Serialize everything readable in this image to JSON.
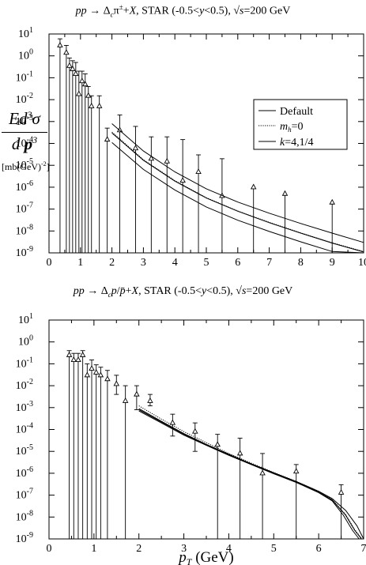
{
  "titles": {
    "top": "pp → Δcπ±+X, STAR (-0.5<y<0.5), √s=200 GeV",
    "bottom": "pp → Δcp/p̄+X, STAR (-0.5<y<0.5), √s=200 GeV"
  },
  "y_axis_label": {
    "numerator": "Ed³σ",
    "denominator": "dp³",
    "unit": "[mb(GeV)⁻²]"
  },
  "x_axis_label": "pT (GeV)",
  "legend": {
    "entries": [
      "Default",
      "mh=0",
      "k=4,1/4"
    ],
    "placement": "top-right"
  },
  "chart_data": [
    {
      "type": "scatter",
      "title": "pp → Δcπ±+X, STAR (-0.5<y<0.5), √s=200 GeV",
      "xlabel": "",
      "ylabel": "Ed³σ/dp³ [mb(GeV)⁻²]",
      "xlim": [
        0,
        10
      ],
      "ylim": [
        1e-09,
        10
      ],
      "yscale": "log",
      "xticks": [
        0,
        1,
        2,
        3,
        4,
        5,
        6,
        7,
        8,
        9,
        10
      ],
      "yticks": [
        "10^-9",
        "10^-8",
        "10^-7",
        "10^-6",
        "10^-5",
        "10^-4",
        "10^-3",
        "10^-2",
        "10^-1",
        "10^0",
        "10^1"
      ],
      "series": [
        {
          "name": "data",
          "points": [
            [
              0.35,
              3.0,
              6.0,
              1e-09
            ],
            [
              0.55,
              1.4,
              3.0,
              1e-09
            ],
            [
              0.65,
              0.35,
              0.8,
              1e-09
            ],
            [
              0.75,
              0.25,
              0.6,
              1e-09
            ],
            [
              0.85,
              0.15,
              0.5,
              1e-09
            ],
            [
              0.95,
              0.018,
              0.2,
              1e-09
            ],
            [
              1.05,
              0.07,
              0.2,
              1e-09
            ],
            [
              1.15,
              0.05,
              0.15,
              1e-09
            ],
            [
              1.25,
              0.015,
              0.04,
              1e-09
            ],
            [
              1.35,
              0.005,
              0.015,
              1e-09
            ],
            [
              1.6,
              0.005,
              0.015,
              1e-09
            ],
            [
              1.85,
              0.00015,
              0.0005,
              1e-09
            ],
            [
              2.25,
              0.0004,
              0.002,
              1e-09
            ],
            [
              2.75,
              6e-05,
              0.0006,
              1e-09
            ],
            [
              3.25,
              2e-05,
              0.0002,
              1e-09
            ],
            [
              3.75,
              1.5e-05,
              0.0002,
              1e-09
            ],
            [
              4.25,
              2e-06,
              0.00015,
              1e-09
            ],
            [
              4.75,
              5e-06,
              3e-05,
              1e-09
            ],
            [
              5.5,
              4e-07,
              2e-05,
              1e-09
            ],
            [
              6.5,
              1e-06,
              1e-06,
              1e-09
            ],
            [
              7.5,
              5e-07,
              5e-07,
              1e-09
            ],
            [
              9.0,
              2e-07,
              2e-07,
              1e-09
            ]
          ]
        },
        {
          "name": "Default",
          "style": "solid",
          "x": [
            2,
            3,
            4,
            5,
            6,
            7,
            8,
            9,
            10
          ],
          "y": [
            0.0003,
            1.7e-05,
            1.9e-06,
            3.2e-07,
            8e-08,
            2.4e-08,
            8e-09,
            2.8e-09,
            1.1e-09
          ]
        },
        {
          "name": "mh=0",
          "style": "dotted",
          "x": [
            2,
            3,
            4,
            5,
            6,
            7,
            8,
            9,
            10
          ],
          "y": [
            0.00033,
            1.8e-05,
            2e-06,
            3.3e-07,
            8.2e-08,
            2.5e-08,
            8.2e-09,
            2.9e-09,
            1.15e-09
          ]
        },
        {
          "name": "k=4",
          "style": "solid",
          "x": [
            2,
            3,
            4,
            5,
            6,
            7,
            8,
            9,
            10
          ],
          "y": [
            0.0008,
            4.5e-05,
            5e-06,
            8.5e-07,
            2.1e-07,
            6.5e-08,
            2.2e-08,
            8e-09,
            3e-09
          ]
        },
        {
          "name": "k=1/4",
          "style": "solid",
          "x": [
            2,
            3,
            4,
            5,
            6,
            7,
            8,
            9,
            10
          ],
          "y": [
            0.00011,
            6.5e-06,
            7.5e-07,
            1.25e-07,
            3.1e-08,
            9.5e-09,
            3.2e-09,
            1.15e-09,
            4.5e-10
          ]
        }
      ]
    },
    {
      "type": "scatter",
      "title": "pp → Δcp/p̄+X, STAR (-0.5<y<0.5), √s=200 GeV",
      "xlabel": "pT (GeV)",
      "ylabel": "Ed³σ/dp³ [mb(GeV)⁻²]",
      "xlim": [
        0,
        7
      ],
      "ylim": [
        1e-09,
        10
      ],
      "yscale": "log",
      "xticks": [
        0,
        1,
        2,
        3,
        4,
        5,
        6,
        7
      ],
      "yticks": [
        "10^-9",
        "10^-8",
        "10^-7",
        "10^-6",
        "10^-5",
        "10^-4",
        "10^-3",
        "10^-2",
        "10^-1",
        "10^0",
        "10^1"
      ],
      "series": [
        {
          "name": "data",
          "points": [
            [
              0.45,
              0.25,
              0.4,
              1e-09
            ],
            [
              0.55,
              0.15,
              0.3,
              1e-09
            ],
            [
              0.65,
              0.15,
              0.3,
              1e-09
            ],
            [
              0.75,
              0.25,
              0.4,
              1e-09
            ],
            [
              0.85,
              0.03,
              0.1,
              1e-09
            ],
            [
              0.95,
              0.06,
              0.15,
              1e-09
            ],
            [
              1.05,
              0.04,
              0.09,
              1e-09
            ],
            [
              1.15,
              0.03,
              0.07,
              1e-09
            ],
            [
              1.3,
              0.02,
              0.05,
              1e-09
            ],
            [
              1.5,
              0.012,
              0.03,
              0.004
            ],
            [
              1.7,
              0.002,
              0.01,
              1e-09
            ],
            [
              1.95,
              0.004,
              0.01,
              0.0008
            ],
            [
              2.25,
              0.002,
              0.004,
              0.0012
            ],
            [
              2.75,
              0.0002,
              0.0005,
              5e-05
            ],
            [
              3.25,
              8e-05,
              0.0002,
              1e-05
            ],
            [
              3.75,
              2e-05,
              6e-05,
              1e-09
            ],
            [
              4.25,
              8e-06,
              4e-05,
              1e-09
            ],
            [
              4.75,
              1e-06,
              8e-06,
              1e-09
            ],
            [
              5.5,
              1.2e-06,
              2.5e-06,
              1e-09
            ],
            [
              6.5,
              1.3e-07,
              3e-07,
              1e-09
            ]
          ]
        },
        {
          "name": "Default",
          "style": "solid",
          "x": [
            2,
            2.5,
            3,
            3.5,
            4,
            4.5,
            5,
            5.5,
            6,
            6.3,
            6.6,
            6.8,
            6.95
          ],
          "y": [
            0.0008,
            0.00022,
            6e-05,
            2e-05,
            7e-06,
            2.6e-06,
            1e-06,
            4e-07,
            1.4e-07,
            6e-08,
            1.2e-08,
            2.5e-09,
            1e-09
          ]
        },
        {
          "name": "mh=0",
          "style": "dotted",
          "x": [
            2,
            2.5,
            3,
            3.5,
            4,
            4.5,
            5,
            5.5,
            6,
            6.3,
            6.6,
            6.8,
            6.95
          ],
          "y": [
            0.0012,
            0.0003,
            8e-05,
            2.5e-05,
            8e-06,
            2.9e-06,
            1.1e-06,
            4.3e-07,
            1.5e-07,
            6.4e-08,
            1.3e-08,
            2.7e-09,
            1.1e-09
          ]
        },
        {
          "name": "k=4",
          "style": "solid",
          "x": [
            2,
            2.5,
            3,
            3.5,
            4,
            4.5,
            5,
            5.5,
            6,
            6.3,
            6.6,
            6.85,
            7.0
          ],
          "y": [
            0.0009,
            0.00024,
            6.5e-05,
            2.1e-05,
            7.4e-06,
            2.7e-06,
            1.05e-06,
            4.2e-07,
            1.5e-07,
            7e-08,
            2e-08,
            4e-09,
            1e-09
          ]
        },
        {
          "name": "k=1/4",
          "style": "solid",
          "x": [
            2,
            2.5,
            3,
            3.5,
            4,
            4.5,
            5,
            5.5,
            6,
            6.3,
            6.55,
            6.75,
            6.9
          ],
          "y": [
            0.0007,
            0.0002,
            5.5e-05,
            1.9e-05,
            6.6e-06,
            2.5e-06,
            9.5e-07,
            3.8e-07,
            1.3e-07,
            5.5e-08,
            1.2e-08,
            2.5e-09,
            1e-09
          ]
        }
      ]
    }
  ]
}
